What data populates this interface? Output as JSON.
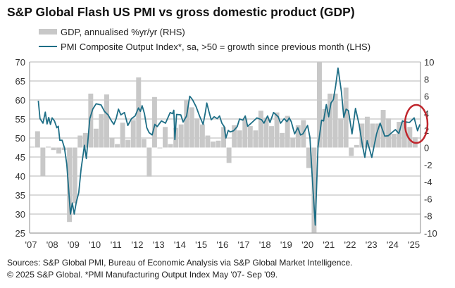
{
  "chart_data": {
    "type": "bar+line",
    "title": "S&P Global Flash US PMI vs gross domestic product (GDP)",
    "legend": {
      "position": "top",
      "entries": [
        "GDP, annualised %yr/yr (RHS)",
        "PMI Composite Output Index*, sa, >50 = growth since previous month (LHS)"
      ]
    },
    "left_axis": {
      "range": [
        25,
        70
      ],
      "ticks": [
        "70",
        "65",
        "60",
        "55",
        "50",
        "45",
        "40",
        "35",
        "30",
        "25"
      ]
    },
    "right_axis": {
      "range": [
        -10,
        10
      ],
      "ticks": [
        "10",
        "8",
        "6",
        "4",
        "2",
        "0",
        "-2",
        "-4",
        "-6",
        "-8",
        "-10"
      ]
    },
    "x_axis": {
      "range": [
        2007,
        2025.35
      ],
      "ticks": [
        "'07",
        "'08",
        "'09",
        "'10",
        "'11",
        "'12",
        "'13",
        "'14",
        "'15",
        "'16",
        "'17",
        "'18",
        "'19",
        "'20",
        "'21",
        "'22",
        "'23",
        "'24",
        "'25"
      ]
    },
    "grid": "horizontal",
    "colors": {
      "gdp_bar": "#c8c8c8",
      "pmi_line": "#1d6e86",
      "annotation": "#c0262d",
      "grid": "#c4c4c4"
    },
    "series": [
      {
        "name": "GDP, annualised %yr/yr (RHS)",
        "type": "bar",
        "axis": "right",
        "start_quarter": "2007 Q1",
        "values": [
          0.1,
          1.9,
          -3.3,
          0.1,
          -0.3,
          -0.7,
          -0.3,
          -8.7,
          -6.5,
          1.4,
          1.7,
          6.3,
          2.2,
          3.9,
          6.2,
          1.1,
          0.4,
          2.9,
          0.9,
          3.2,
          8.2,
          1.0,
          -3.4,
          5.9,
          -0.1,
          2.4,
          0.4,
          2.3,
          2.7,
          5.6,
          4.7,
          3.4,
          2.7,
          1.4,
          0.7,
          0.8,
          2.4,
          -1.8,
          2.6,
          2.0,
          3.4,
          2.5,
          2.0,
          4.3,
          3.5,
          2.5,
          4.1,
          1.7,
          3.7,
          1.1,
          2.6,
          3.2,
          -2.4,
          -10,
          10,
          4.5,
          6.3,
          6.3,
          3.4,
          7.0,
          -1.0,
          0.3,
          2.8,
          3.6,
          2.8,
          2.8,
          4.4,
          3.4,
          1.6,
          3.0,
          3.1,
          2.4,
          1.2
        ]
      },
      {
        "name": "PMI Composite Output Index*, sa, >50 = growth since previous month (LHS)",
        "type": "line",
        "axis": "left",
        "x": [
          2007.41,
          2007.49,
          2007.63,
          2007.74,
          2007.82,
          2007.9,
          2007.98,
          2008.06,
          2008.17,
          2008.28,
          2008.35,
          2008.42,
          2008.53,
          2008.64,
          2008.75,
          2008.83,
          2008.92,
          2009.01,
          2009.1,
          2009.2,
          2009.31,
          2009.42,
          2009.58,
          2009.67,
          2009.83,
          2009.97,
          2010.13,
          2010.36,
          2010.52,
          2010.69,
          2010.85,
          2010.96,
          2011.07,
          2011.18,
          2011.29,
          2011.46,
          2011.62,
          2011.79,
          2011.96,
          2012.12,
          2012.21,
          2012.29,
          2012.4,
          2012.51,
          2012.62,
          2012.76,
          2012.89,
          2013.0,
          2013.2,
          2013.39,
          2013.61,
          2013.72,
          2013.78,
          2013.83,
          2013.91,
          2014.11,
          2014.22,
          2014.38,
          2014.53,
          2014.66,
          2014.83,
          2014.99,
          2015.16,
          2015.27,
          2015.33,
          2015.43,
          2015.54,
          2015.68,
          2015.82,
          2015.93,
          2016.04,
          2016.15,
          2016.23,
          2016.34,
          2016.43,
          2016.59,
          2016.76,
          2016.87,
          2017.03,
          2017.14,
          2017.25,
          2017.42,
          2017.69,
          2017.91,
          2018.02,
          2018.19,
          2018.3,
          2018.47,
          2018.69,
          2018.8,
          2018.97,
          2019.1,
          2019.21,
          2019.3,
          2019.46,
          2019.61,
          2019.74,
          2019.85,
          2020.07,
          2020.18,
          2020.29,
          2020.43,
          2020.56,
          2020.73,
          2020.82,
          2020.95,
          2021.06,
          2021.17,
          2021.28,
          2021.39,
          2021.5,
          2021.66,
          2021.77,
          2021.88,
          2021.99,
          2022.16,
          2022.32,
          2022.49,
          2022.65,
          2022.76,
          2022.87,
          2023.09,
          2023.31,
          2023.48,
          2023.7,
          2023.86,
          2024.09,
          2024.2,
          2024.36,
          2024.53,
          2024.69,
          2024.86,
          2025.08,
          2025.24,
          2025.35
        ],
        "values": [
          59.8,
          55.1,
          53.9,
          56.8,
          53.7,
          55.4,
          53.6,
          55.3,
          54.5,
          52.7,
          53.1,
          49.4,
          49.4,
          47.4,
          43.1,
          36.9,
          30.0,
          32.9,
          30.0,
          33.2,
          35.6,
          41.8,
          48.1,
          44.6,
          55.1,
          57.6,
          59.0,
          58.7,
          57.0,
          56.1,
          54.5,
          53.6,
          55.1,
          57.6,
          56.1,
          56.7,
          53.3,
          55.1,
          55.8,
          57.9,
          57.0,
          58.5,
          56.4,
          52.7,
          51.4,
          50.8,
          53.6,
          53.0,
          54.5,
          53.9,
          56.7,
          56.4,
          57.3,
          49.6,
          56.2,
          56.1,
          54.2,
          55.8,
          61.0,
          60.1,
          58.2,
          55.8,
          53.6,
          57.0,
          59.2,
          57.0,
          54.8,
          55.6,
          55.1,
          55.8,
          53.9,
          53.0,
          50.0,
          52.0,
          51.6,
          51.9,
          53.0,
          55.0,
          54.7,
          55.8,
          53.1,
          53.9,
          55.3,
          54.8,
          53.9,
          55.8,
          54.1,
          56.7,
          55.6,
          53.9,
          55.1,
          54.3,
          55.3,
          54.3,
          51.1,
          52.7,
          50.8,
          51.1,
          53.3,
          50.2,
          39.4,
          27.1,
          47.7,
          54.7,
          54.5,
          58.8,
          55.6,
          59.2,
          60.1,
          63.8,
          68.4,
          62.2,
          55.4,
          57.6,
          57.2,
          51.1,
          57.8,
          53.6,
          48.0,
          44.9,
          49.3,
          44.9,
          51.1,
          53.9,
          50.5,
          50.6,
          51.7,
          52.2,
          51.2,
          54.5,
          54.2,
          54.1,
          55.3,
          51.9,
          53.6
        ]
      }
    ],
    "annotation": "red-ellipse-latest-readings"
  },
  "footer": {
    "sources": "Sources: S&P Global PMI,  Bureau of Economic Analysis via S&P Global Market Intelligence.",
    "copyright": "© 2025 S&P Global.  *PMI Manufacturing Output Index May '07- Sep '09."
  }
}
